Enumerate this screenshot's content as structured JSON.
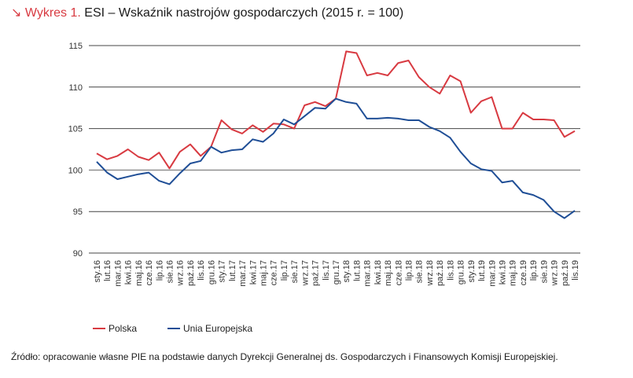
{
  "title": {
    "prefix": "↘ Wykres 1.",
    "text": " ESI – Wskaźnik nastrojów gospodarczych (2015 r. = 100)"
  },
  "source": "Źródło: opracowanie własne PIE na podstawie danych Dyrekcji Generalnej ds. Gospodarczych i Finansowych Komisji Europejskiej.",
  "chart_data": {
    "type": "line",
    "title": "ESI – Wskaźnik nastrojów gospodarczych (2015 r. = 100)",
    "xlabel": "",
    "ylabel": "",
    "ylim": [
      90,
      115
    ],
    "yticks": [
      90,
      95,
      100,
      105,
      110,
      115
    ],
    "grid": true,
    "legend_position": "bottom-left",
    "categories": [
      "sty.16",
      "lut.16",
      "mar.16",
      "kwi.16",
      "maj.16",
      "cze.16",
      "lip.16",
      "sie.16",
      "wrz.16",
      "paź.16",
      "lis.16",
      "gru.16",
      "sty.17",
      "lut.17",
      "mar.17",
      "kwi.17",
      "maj.17",
      "cze.17",
      "lip.17",
      "sie.17",
      "wrz.17",
      "paź.17",
      "lis.17",
      "gru.17",
      "sty.18",
      "lut.18",
      "mar.18",
      "kwi.18",
      "maj.18",
      "cze.18",
      "lip.18",
      "sie.18",
      "wrz.18",
      "paź.18",
      "lis.18",
      "gru.18",
      "sty.19",
      "lut.19",
      "mar.19",
      "kwi.19",
      "maj.19",
      "cze.19",
      "lip.19",
      "sie.19",
      "wrz.19",
      "paź.19",
      "lis.19"
    ],
    "series": [
      {
        "name": "Polska",
        "color": "#d83a41",
        "values": [
          102,
          101.3,
          101.7,
          102.5,
          101.6,
          101.2,
          102.1,
          100.2,
          102.2,
          103.1,
          101.7,
          102.8,
          106,
          104.9,
          104.4,
          105.4,
          104.6,
          105.6,
          105.5,
          105,
          107.8,
          108.2,
          107.7,
          108.6,
          114.3,
          114.1,
          111.4,
          111.7,
          111.4,
          112.9,
          113.2,
          111.2,
          110,
          109.2,
          111.4,
          110.7,
          106.9,
          108.3,
          108.8,
          105,
          105,
          106.9,
          106.1,
          106.1,
          106,
          104,
          104.7
        ]
      },
      {
        "name": "Unia Europejska",
        "color": "#1f4e96",
        "values": [
          101,
          99.7,
          98.9,
          99.2,
          99.5,
          99.7,
          98.7,
          98.3,
          99.6,
          100.8,
          101.1,
          102.8,
          102.1,
          102.4,
          102.5,
          103.7,
          103.4,
          104.4,
          106.1,
          105.5,
          106.5,
          107.5,
          107.4,
          108.6,
          108.2,
          108,
          106.2,
          106.2,
          106.3,
          106.2,
          106,
          106,
          105.2,
          104.7,
          103.9,
          102.2,
          100.8,
          100.1,
          99.9,
          98.5,
          98.7,
          97.3,
          97,
          96.4,
          95,
          94.2,
          95.1
        ]
      }
    ]
  }
}
